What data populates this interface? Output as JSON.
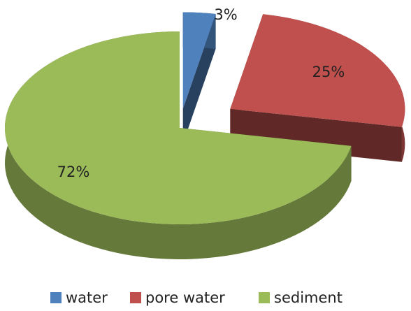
{
  "chart_data": {
    "type": "pie3d",
    "categories": [
      "water",
      "pore water",
      "sediment"
    ],
    "values": [
      3,
      25,
      72
    ],
    "value_labels": [
      "3%",
      "25%",
      "72%"
    ],
    "colors": [
      "#4f81bd",
      "#c0504d",
      "#9bbb59"
    ],
    "legend": "bottom"
  }
}
